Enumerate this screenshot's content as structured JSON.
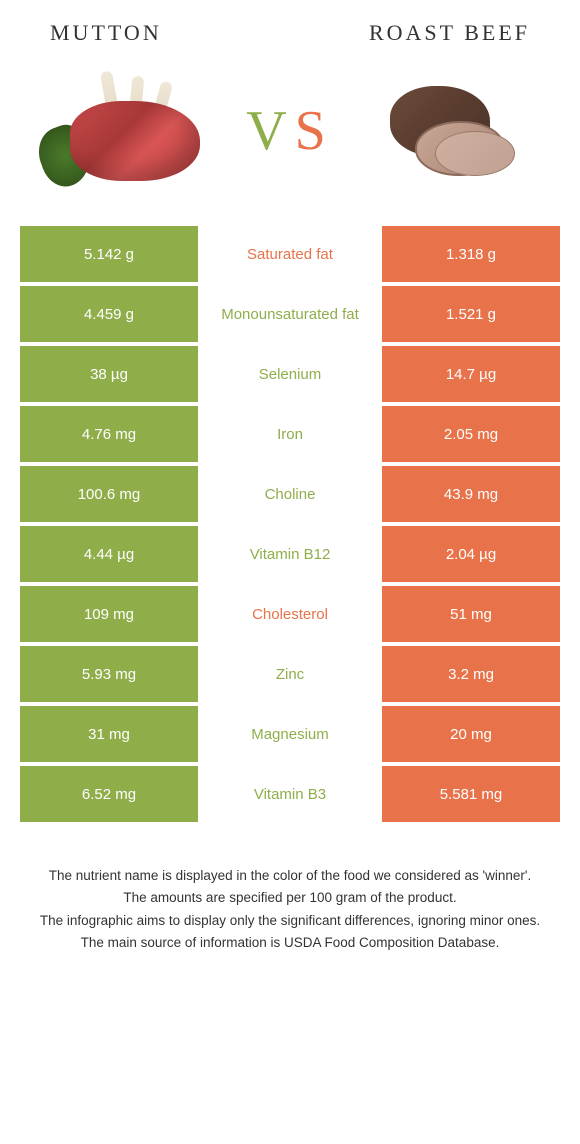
{
  "colors": {
    "green": "#8fae4a",
    "orange": "#e8724a",
    "vs_v": "#8fae4a",
    "vs_s": "#e8724a"
  },
  "left_food": "Mutton",
  "right_food": "Roast beef",
  "vs_label_v": "V",
  "vs_label_s": "S",
  "rows": [
    {
      "left": "5.142 g",
      "nutrient": "Saturated fat",
      "right": "1.318 g",
      "winner": "orange"
    },
    {
      "left": "4.459 g",
      "nutrient": "Monounsaturated fat",
      "right": "1.521 g",
      "winner": "green"
    },
    {
      "left": "38 µg",
      "nutrient": "Selenium",
      "right": "14.7 µg",
      "winner": "green"
    },
    {
      "left": "4.76 mg",
      "nutrient": "Iron",
      "right": "2.05 mg",
      "winner": "green"
    },
    {
      "left": "100.6 mg",
      "nutrient": "Choline",
      "right": "43.9 mg",
      "winner": "green"
    },
    {
      "left": "4.44 µg",
      "nutrient": "Vitamin B12",
      "right": "2.04 µg",
      "winner": "green"
    },
    {
      "left": "109 mg",
      "nutrient": "Cholesterol",
      "right": "51 mg",
      "winner": "orange"
    },
    {
      "left": "5.93 mg",
      "nutrient": "Zinc",
      "right": "3.2 mg",
      "winner": "green"
    },
    {
      "left": "31 mg",
      "nutrient": "Magnesium",
      "right": "20 mg",
      "winner": "green"
    },
    {
      "left": "6.52 mg",
      "nutrient": "Vitamin B3",
      "right": "5.581 mg",
      "winner": "green"
    }
  ],
  "footer": [
    "The nutrient name is displayed in the color of the food we considered as 'winner'.",
    "The amounts are specified per 100 gram of the product.",
    "The infographic aims to display only the significant differences, ignoring minor ones.",
    "The main source of information is USDA Food Composition Database."
  ]
}
